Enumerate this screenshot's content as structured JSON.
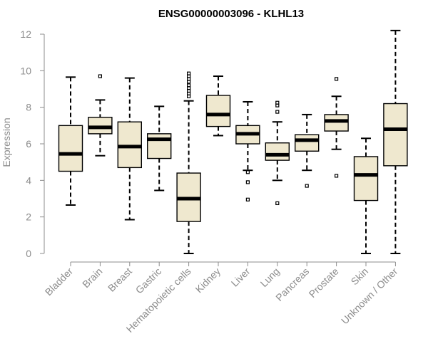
{
  "chart_data": {
    "type": "boxplot",
    "title": "ENSG00000003096 - KLHL13",
    "xlabel": "",
    "ylabel": "Expression",
    "ylim": [
      0,
      12.5
    ],
    "yticks": [
      0,
      2,
      4,
      6,
      8,
      10,
      12
    ],
    "grid": false,
    "legend": "none",
    "box_color": "#efe8cf",
    "categories": [
      "Bladder",
      "Brain",
      "Breast",
      "Gastric",
      "Hematopoietic cells",
      "Kidney",
      "Liver",
      "Lung",
      "Pancreas",
      "Prostate",
      "Skin",
      "Unknown / Other"
    ],
    "boxes": [
      {
        "whisker_low": 2.65,
        "q1": 4.5,
        "median": 5.45,
        "q3": 7.0,
        "whisker_high": 9.65,
        "outliers": []
      },
      {
        "whisker_low": 5.35,
        "q1": 6.55,
        "median": 6.9,
        "q3": 7.45,
        "whisker_high": 8.4,
        "outliers": [
          9.7
        ]
      },
      {
        "whisker_low": 1.85,
        "q1": 4.7,
        "median": 5.85,
        "q3": 7.2,
        "whisker_high": 9.6,
        "outliers": []
      },
      {
        "whisker_low": 3.45,
        "q1": 5.2,
        "median": 6.25,
        "q3": 6.55,
        "whisker_high": 8.05,
        "outliers": []
      },
      {
        "whisker_low": 0.0,
        "q1": 1.75,
        "median": 3.0,
        "q3": 4.4,
        "whisker_high": 8.35,
        "outliers": [
          8.6,
          8.75,
          8.9,
          9.05,
          9.2,
          9.4,
          9.55,
          9.7,
          9.85
        ]
      },
      {
        "whisker_low": 6.45,
        "q1": 6.95,
        "median": 7.6,
        "q3": 8.65,
        "whisker_high": 9.7,
        "outliers": []
      },
      {
        "whisker_low": 4.55,
        "q1": 6.0,
        "median": 6.55,
        "q3": 7.0,
        "whisker_high": 8.3,
        "outliers": [
          4.45,
          3.9,
          2.95
        ]
      },
      {
        "whisker_low": 4.0,
        "q1": 5.1,
        "median": 5.4,
        "q3": 6.05,
        "whisker_high": 7.2,
        "outliers": [
          7.75,
          8.1,
          8.25,
          2.75
        ]
      },
      {
        "whisker_low": 4.55,
        "q1": 5.6,
        "median": 6.2,
        "q3": 6.5,
        "whisker_high": 7.6,
        "outliers": [
          3.7
        ]
      },
      {
        "whisker_low": 5.7,
        "q1": 6.7,
        "median": 7.25,
        "q3": 7.6,
        "whisker_high": 8.6,
        "outliers": [
          9.55,
          4.25
        ]
      },
      {
        "whisker_low": 0.0,
        "q1": 2.9,
        "median": 4.3,
        "q3": 5.3,
        "whisker_high": 6.3,
        "outliers": []
      },
      {
        "whisker_low": 0.0,
        "q1": 4.8,
        "median": 6.8,
        "q3": 8.2,
        "whisker_high": 12.2,
        "outliers": []
      }
    ]
  }
}
